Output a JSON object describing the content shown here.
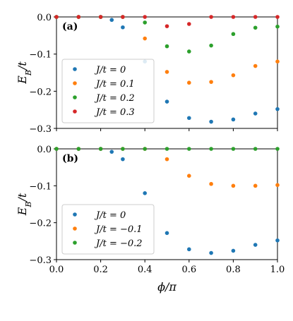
{
  "chart_data": [
    {
      "type": "scatter",
      "panel_label": "(a)",
      "ylabel": "E_B/t",
      "xlim": [
        0,
        1
      ],
      "ylim": [
        -0.3,
        0
      ],
      "yticks": [
        0.0,
        -0.1,
        -0.2,
        -0.3
      ],
      "ytick_labels": [
        "0.0",
        "−0.1",
        "−0.2",
        "−0.3"
      ],
      "xtick_labels_visible": false,
      "legend_position": "lower-left",
      "series": [
        {
          "name": "J/t = 0",
          "color": "#1f77b4",
          "x": [
            0.0,
            0.1,
            0.2,
            0.25,
            0.3,
            0.4,
            0.5,
            0.6,
            0.7,
            0.8,
            0.9,
            1.0
          ],
          "y": [
            0.0,
            0.0,
            0.0,
            -0.008,
            -0.028,
            -0.12,
            -0.228,
            -0.272,
            -0.282,
            -0.276,
            -0.26,
            -0.248
          ]
        },
        {
          "name": "J/t = 0.1",
          "color": "#ff7f0e",
          "x": [
            0.0,
            0.1,
            0.2,
            0.3,
            0.4,
            0.5,
            0.6,
            0.7,
            0.8,
            0.9,
            1.0
          ],
          "y": [
            0.0,
            0.0,
            0.0,
            0.0,
            -0.058,
            -0.148,
            -0.177,
            -0.175,
            -0.157,
            -0.132,
            -0.12
          ]
        },
        {
          "name": "J/t = 0.2",
          "color": "#2ca02c",
          "x": [
            0.0,
            0.1,
            0.2,
            0.3,
            0.4,
            0.5,
            0.6,
            0.7,
            0.8,
            0.9,
            1.0
          ],
          "y": [
            0.0,
            0.0,
            0.0,
            0.0,
            -0.015,
            -0.079,
            -0.093,
            -0.077,
            -0.046,
            -0.029,
            -0.026
          ]
        },
        {
          "name": "J/t = 0.3",
          "color": "#d62728",
          "x": [
            0.0,
            0.1,
            0.2,
            0.3,
            0.4,
            0.5,
            0.6,
            0.7,
            0.8,
            0.9,
            1.0
          ],
          "y": [
            0.0,
            0.0,
            0.0,
            0.0,
            0.0,
            -0.025,
            -0.019,
            0.0,
            0.0,
            0.0,
            0.0
          ]
        }
      ]
    },
    {
      "type": "scatter",
      "panel_label": "(b)",
      "xlabel": "ϕ/π",
      "ylabel": "E_B/t",
      "xlim": [
        0,
        1
      ],
      "ylim": [
        -0.3,
        0
      ],
      "xticks": [
        0.0,
        0.2,
        0.4,
        0.6,
        0.8,
        1.0
      ],
      "xtick_labels": [
        "0.0",
        "0.2",
        "0.4",
        "0.6",
        "0.8",
        "1.0"
      ],
      "yticks": [
        0.0,
        -0.1,
        -0.2,
        -0.3
      ],
      "ytick_labels": [
        "0.0",
        "−0.1",
        "−0.2",
        "−0.3"
      ],
      "legend_position": "lower-left",
      "series": [
        {
          "name": "J/t = 0",
          "color": "#1f77b4",
          "x": [
            0.0,
            0.1,
            0.2,
            0.25,
            0.3,
            0.4,
            0.5,
            0.6,
            0.7,
            0.8,
            0.9,
            1.0
          ],
          "y": [
            0.0,
            0.0,
            0.0,
            -0.008,
            -0.028,
            -0.12,
            -0.228,
            -0.272,
            -0.282,
            -0.276,
            -0.26,
            -0.248
          ]
        },
        {
          "name": "J/t = −0.1",
          "color": "#ff7f0e",
          "x": [
            0.0,
            0.1,
            0.2,
            0.3,
            0.4,
            0.5,
            0.6,
            0.7,
            0.8,
            0.9,
            1.0
          ],
          "y": [
            0.0,
            0.0,
            0.0,
            0.0,
            0.0,
            -0.028,
            -0.073,
            -0.095,
            -0.1,
            -0.1,
            -0.098
          ]
        },
        {
          "name": "J/t = −0.2",
          "color": "#2ca02c",
          "x": [
            0.0,
            0.1,
            0.2,
            0.3,
            0.4,
            0.5,
            0.6,
            0.7,
            0.8,
            0.9,
            1.0
          ],
          "y": [
            0.0,
            0.0,
            0.0,
            0.0,
            0.0,
            0.0,
            0.0,
            0.0,
            0.0,
            0.0,
            0.0
          ]
        }
      ]
    }
  ]
}
